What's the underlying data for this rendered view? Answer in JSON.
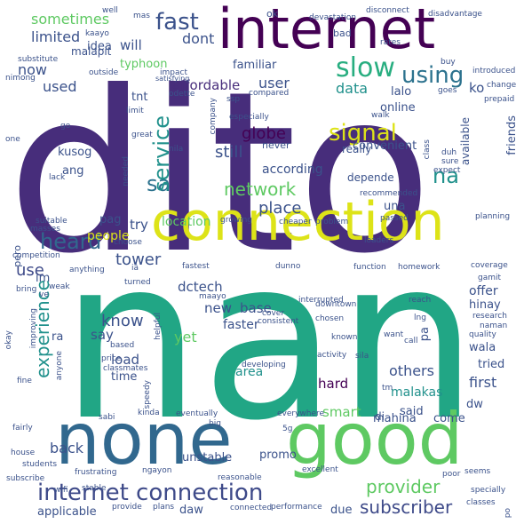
{
  "palette": {
    "deep_purple": "#440154",
    "purple": "#472d7b",
    "indigo": "#3b528b",
    "blue": "#2c728e",
    "teal": "#21918c",
    "green": "#28ae80",
    "light_green": "#5ec962",
    "lime": "#addc30",
    "yellow": "#dde318"
  },
  "words": [
    {
      "text": "dito",
      "weight": 1.0,
      "color": "#472d7b"
    },
    {
      "text": "nan",
      "weight": 0.95,
      "color": "#21a685"
    },
    {
      "text": "none",
      "weight": 0.55,
      "color": "#31688e"
    },
    {
      "text": "good",
      "weight": 0.55,
      "color": "#5ec962"
    },
    {
      "text": "connection",
      "weight": 0.45,
      "color": "#dde318"
    },
    {
      "text": "internet",
      "weight": 0.4,
      "color": "#440154"
    },
    {
      "text": "internet connection",
      "weight": 0.2,
      "color": "#3e4a89"
    },
    {
      "text": "slow",
      "weight": 0.18,
      "color": "#28ae80"
    },
    {
      "text": "fast",
      "weight": 0.16,
      "color": "#3b528b"
    },
    {
      "text": "using",
      "weight": 0.16,
      "color": "#2c728e"
    },
    {
      "text": "signal",
      "weight": 0.16,
      "color": "#dde318"
    },
    {
      "text": "heard",
      "weight": 0.16,
      "color": "#31688e"
    },
    {
      "text": "sa",
      "weight": 0.15,
      "color": "#2c728e"
    },
    {
      "text": "na",
      "weight": 0.15,
      "color": "#21918c"
    },
    {
      "text": "service",
      "weight": 0.15,
      "color": "#21918c"
    },
    {
      "text": "network",
      "weight": 0.14,
      "color": "#5ec962"
    },
    {
      "text": "experience",
      "weight": 0.14,
      "color": "#21918c"
    },
    {
      "text": "provider",
      "weight": 0.14,
      "color": "#5ec962"
    },
    {
      "text": "subscriber",
      "weight": 0.13,
      "color": "#3e4a89"
    },
    {
      "text": "sometimes",
      "weight": 0.13,
      "color": "#5ec962"
    },
    {
      "text": "globe",
      "weight": 0.13,
      "color": "#440154"
    },
    {
      "text": "still",
      "weight": 0.13,
      "color": "#3b528b"
    },
    {
      "text": "place",
      "weight": 0.12,
      "color": "#3b528b"
    },
    {
      "text": "know",
      "weight": 0.12,
      "color": "#3b528b"
    },
    {
      "text": "tower",
      "weight": 0.12,
      "color": "#3b528b"
    },
    {
      "text": "use",
      "weight": 0.12,
      "color": "#3e4a89"
    },
    {
      "text": "dont",
      "weight": 0.11,
      "color": "#3b528b"
    },
    {
      "text": "user",
      "weight": 0.11,
      "color": "#3b528b"
    },
    {
      "text": "data",
      "weight": 0.11,
      "color": "#21918c"
    },
    {
      "text": "limited",
      "weight": 0.1,
      "color": "#3b528b"
    },
    {
      "text": "now",
      "weight": 0.1,
      "color": "#3b528b"
    },
    {
      "text": "used",
      "weight": 0.1,
      "color": "#3b528b"
    },
    {
      "text": "affordable",
      "weight": 0.1,
      "color": "#472d7b"
    },
    {
      "text": "smart",
      "weight": 0.1,
      "color": "#5ec962"
    },
    {
      "text": "others",
      "weight": 0.1,
      "color": "#3b528b"
    },
    {
      "text": "first",
      "weight": 0.1,
      "color": "#3b528b"
    },
    {
      "text": "yet",
      "weight": 0.1,
      "color": "#5ec962"
    },
    {
      "text": "back",
      "weight": 0.1,
      "color": "#3b528b"
    },
    {
      "text": "say",
      "weight": 0.09,
      "color": "#3b528b"
    },
    {
      "text": "load",
      "weight": 0.09,
      "color": "#3b528b"
    },
    {
      "text": "new",
      "weight": 0.09,
      "color": "#3b528b"
    },
    {
      "text": "hard",
      "weight": 0.09,
      "color": "#440154"
    },
    {
      "text": "ko",
      "weight": 0.09,
      "color": "#3b528b"
    },
    {
      "text": "will",
      "weight": 0.09,
      "color": "#3b528b"
    },
    {
      "text": "try",
      "weight": 0.09,
      "color": "#3b528b"
    },
    {
      "text": "people",
      "weight": 0.08,
      "color": "#dde318"
    },
    {
      "text": "location",
      "weight": 0.08,
      "color": "#5ec962"
    },
    {
      "text": "dctech",
      "weight": 0.08,
      "color": "#3b528b"
    },
    {
      "text": "base",
      "weight": 0.08,
      "color": "#3b528b"
    },
    {
      "text": "area",
      "weight": 0.08,
      "color": "#21918c"
    },
    {
      "text": "offer",
      "weight": 0.08,
      "color": "#3b528b"
    },
    {
      "text": "faster",
      "weight": 0.08,
      "color": "#3b528b"
    },
    {
      "text": "according",
      "weight": 0.08,
      "color": "#3b528b"
    },
    {
      "text": "online",
      "weight": 0.08,
      "color": "#3b528b"
    },
    {
      "text": "malakas",
      "weight": 0.08,
      "color": "#21918c"
    },
    {
      "text": "applicable",
      "weight": 0.08,
      "color": "#3b528b"
    },
    {
      "text": "friends",
      "weight": 0.07,
      "color": "#3b528b"
    },
    {
      "text": "unstable",
      "weight": 0.07,
      "color": "#3b528b"
    },
    {
      "text": "typhoon",
      "weight": 0.07,
      "color": "#5ec962"
    },
    {
      "text": "familiar",
      "weight": 0.07,
      "color": "#3b528b"
    },
    {
      "text": "convenient",
      "weight": 0.07,
      "color": "#3b528b"
    },
    {
      "text": "really",
      "weight": 0.07,
      "color": "#3b528b"
    },
    {
      "text": "kusog",
      "weight": 0.07,
      "color": "#3b528b"
    },
    {
      "text": "ang",
      "weight": 0.07,
      "color": "#3b528b"
    },
    {
      "text": "una",
      "weight": 0.07,
      "color": "#3b528b"
    },
    {
      "text": "pag",
      "weight": 0.07,
      "color": "#3b528b"
    },
    {
      "text": "im",
      "weight": 0.07,
      "color": "#3b528b"
    },
    {
      "text": "ra",
      "weight": 0.07,
      "color": "#3b528b"
    },
    {
      "text": "pa",
      "weight": 0.07,
      "color": "#3b528b"
    },
    {
      "text": "wala",
      "weight": 0.07,
      "color": "#3b528b"
    },
    {
      "text": "hinay",
      "weight": 0.07,
      "color": "#3b528b"
    },
    {
      "text": "tried",
      "weight": 0.07,
      "color": "#3b528b"
    },
    {
      "text": "said",
      "weight": 0.07,
      "color": "#3b528b"
    },
    {
      "text": "mahina",
      "weight": 0.07,
      "color": "#3b528b"
    },
    {
      "text": "come",
      "weight": 0.07,
      "color": "#3b528b"
    },
    {
      "text": "dw",
      "weight": 0.07,
      "color": "#3b528b"
    },
    {
      "text": "di",
      "weight": 0.07,
      "color": "#3b528b"
    },
    {
      "text": "due",
      "weight": 0.07,
      "color": "#3b528b"
    },
    {
      "text": "daw",
      "weight": 0.07,
      "color": "#3b528b"
    },
    {
      "text": "promo",
      "weight": 0.07,
      "color": "#3b528b"
    },
    {
      "text": "time",
      "weight": 0.07,
      "color": "#3b528b"
    },
    {
      "text": "lalo",
      "weight": 0.07,
      "color": "#3b528b"
    },
    {
      "text": "tnt",
      "weight": 0.07,
      "color": "#3b528b"
    },
    {
      "text": "idea",
      "weight": 0.07,
      "color": "#3b528b"
    },
    {
      "text": "malapit",
      "weight": 0.06,
      "color": "#3b528b"
    },
    {
      "text": "available",
      "weight": 0.06,
      "color": "#3b528b"
    },
    {
      "text": "depende",
      "weight": 0.06,
      "color": "#3b528b"
    },
    {
      "text": "ok",
      "weight": 0.06,
      "color": "#3b528b"
    },
    {
      "text": "bad",
      "weight": 0.06,
      "color": "#3b528b"
    },
    {
      "text": "pero",
      "weight": 0.06,
      "color": "#3b528b"
    },
    {
      "text": "well",
      "weight": 0.05,
      "color": "#3b528b"
    },
    {
      "text": "mas",
      "weight": 0.05,
      "color": "#3b528b"
    },
    {
      "text": "devastation",
      "weight": 0.05,
      "color": "#3b528b"
    },
    {
      "text": "disconnect",
      "weight": 0.05,
      "color": "#3b528b"
    },
    {
      "text": "disadvantage",
      "weight": 0.05,
      "color": "#3b528b"
    },
    {
      "text": "kaayo",
      "weight": 0.05,
      "color": "#3b528b"
    },
    {
      "text": "impact",
      "weight": 0.05,
      "color": "#3b528b"
    },
    {
      "text": "satisfying",
      "weight": 0.05,
      "color": "#3b528b"
    },
    {
      "text": "outside",
      "weight": 0.05,
      "color": "#3b528b"
    },
    {
      "text": "substitute",
      "weight": 0.05,
      "color": "#3b528b"
    },
    {
      "text": "rates",
      "weight": 0.05,
      "color": "#3b528b"
    },
    {
      "text": "buy",
      "weight": 0.05,
      "color": "#3b528b"
    },
    {
      "text": "introduced",
      "weight": 0.05,
      "color": "#3b528b"
    },
    {
      "text": "change",
      "weight": 0.05,
      "color": "#3b528b"
    },
    {
      "text": "goes",
      "weight": 0.05,
      "color": "#3b528b"
    },
    {
      "text": "prepaid",
      "weight": 0.05,
      "color": "#3b528b"
    },
    {
      "text": "nimong",
      "weight": 0.05,
      "color": "#3b528b"
    },
    {
      "text": "odette",
      "weight": 0.05,
      "color": "#3b528b"
    },
    {
      "text": "compared",
      "weight": 0.05,
      "color": "#3b528b"
    },
    {
      "text": "ssp",
      "weight": 0.05,
      "color": "#3b528b"
    },
    {
      "text": "especially",
      "weight": 0.05,
      "color": "#3b528b"
    },
    {
      "text": "walk",
      "weight": 0.05,
      "color": "#3b528b"
    },
    {
      "text": "limit",
      "weight": 0.05,
      "color": "#3b528b"
    },
    {
      "text": "company",
      "weight": 0.05,
      "color": "#3b528b"
    },
    {
      "text": "great",
      "weight": 0.05,
      "color": "#3b528b"
    },
    {
      "text": "nila",
      "weight": 0.05,
      "color": "#3b528b"
    },
    {
      "text": "never",
      "weight": 0.05,
      "color": "#3b528b"
    },
    {
      "text": "duh",
      "weight": 0.05,
      "color": "#3b528b"
    },
    {
      "text": "class",
      "weight": 0.05,
      "color": "#3b528b"
    },
    {
      "text": "expect",
      "weight": 0.05,
      "color": "#3b528b"
    },
    {
      "text": "sure",
      "weight": 0.05,
      "color": "#3b528b"
    },
    {
      "text": "one",
      "weight": 0.05,
      "color": "#3b528b"
    },
    {
      "text": "go",
      "weight": 0.05,
      "color": "#3b528b"
    },
    {
      "text": "needed",
      "weight": 0.05,
      "color": "#3b528b"
    },
    {
      "text": "lack",
      "weight": 0.05,
      "color": "#3b528b"
    },
    {
      "text": "recommended",
      "weight": 0.05,
      "color": "#3b528b"
    },
    {
      "text": "masses",
      "weight": 0.05,
      "color": "#3b528b"
    },
    {
      "text": "suitable",
      "weight": 0.05,
      "color": "#3b528b"
    },
    {
      "text": "choose",
      "weight": 0.05,
      "color": "#3b528b"
    },
    {
      "text": "growing",
      "weight": 0.05,
      "color": "#3b528b"
    },
    {
      "text": "cheaper",
      "weight": 0.05,
      "color": "#3b528b"
    },
    {
      "text": "problem",
      "weight": 0.05,
      "color": "#3b528b"
    },
    {
      "text": "passed",
      "weight": 0.05,
      "color": "#3b528b"
    },
    {
      "text": "planning",
      "weight": 0.05,
      "color": "#3b528b"
    },
    {
      "text": "competition",
      "weight": 0.05,
      "color": "#3b528b"
    },
    {
      "text": "loaders",
      "weight": 0.05,
      "color": "#3b528b"
    },
    {
      "text": "anything",
      "weight": 0.05,
      "color": "#3b528b"
    },
    {
      "text": "iâ",
      "weight": 0.05,
      "color": "#3b528b"
    },
    {
      "text": "fastest",
      "weight": 0.05,
      "color": "#3b528b"
    },
    {
      "text": "dunno",
      "weight": 0.05,
      "color": "#3b528b"
    },
    {
      "text": "function",
      "weight": 0.05,
      "color": "#3b528b"
    },
    {
      "text": "homework",
      "weight": 0.05,
      "color": "#3b528b"
    },
    {
      "text": "coverage",
      "weight": 0.05,
      "color": "#3b528b"
    },
    {
      "text": "bring",
      "weight": 0.05,
      "color": "#3b528b"
    },
    {
      "text": "ve",
      "weight": 0.05,
      "color": "#3b528b"
    },
    {
      "text": "weak",
      "weight": 0.05,
      "color": "#3b528b"
    },
    {
      "text": "maayo",
      "weight": 0.05,
      "color": "#3b528b"
    },
    {
      "text": "interrupted",
      "weight": 0.05,
      "color": "#3b528b"
    },
    {
      "text": "gamit",
      "weight": 0.05,
      "color": "#3b528b"
    },
    {
      "text": "turned",
      "weight": 0.05,
      "color": "#3b528b"
    },
    {
      "text": "downtown",
      "weight": 0.05,
      "color": "#3b528b"
    },
    {
      "text": "reach",
      "weight": 0.05,
      "color": "#3b528b"
    },
    {
      "text": "improving",
      "weight": 0.05,
      "color": "#3b528b"
    },
    {
      "text": "helpful",
      "weight": 0.05,
      "color": "#3b528b"
    },
    {
      "text": "cover",
      "weight": 0.05,
      "color": "#3b528b"
    },
    {
      "text": "consistent",
      "weight": 0.05,
      "color": "#3b528b"
    },
    {
      "text": "chosen",
      "weight": 0.05,
      "color": "#3b528b"
    },
    {
      "text": "lng",
      "weight": 0.05,
      "color": "#3b528b"
    },
    {
      "text": "research",
      "weight": 0.05,
      "color": "#3b528b"
    },
    {
      "text": "naman",
      "weight": 0.05,
      "color": "#3b528b"
    },
    {
      "text": "quality",
      "weight": 0.05,
      "color": "#3b528b"
    },
    {
      "text": "okay",
      "weight": 0.05,
      "color": "#3b528b"
    },
    {
      "text": "based",
      "weight": 0.05,
      "color": "#3b528b"
    },
    {
      "text": "known",
      "weight": 0.05,
      "color": "#3b528b"
    },
    {
      "text": "want",
      "weight": 0.05,
      "color": "#3b528b"
    },
    {
      "text": "call",
      "weight": 0.05,
      "color": "#3b528b"
    },
    {
      "text": "price",
      "weight": 0.05,
      "color": "#3b528b"
    },
    {
      "text": "activity",
      "weight": 0.05,
      "color": "#3b528b"
    },
    {
      "text": "sila",
      "weight": 0.05,
      "color": "#3b528b"
    },
    {
      "text": "anyone",
      "weight": 0.05,
      "color": "#3b528b"
    },
    {
      "text": "classmates",
      "weight": 0.05,
      "color": "#3b528b"
    },
    {
      "text": "developing",
      "weight": 0.05,
      "color": "#3b528b"
    },
    {
      "text": "tm",
      "weight": 0.05,
      "color": "#3b528b"
    },
    {
      "text": "speedy",
      "weight": 0.05,
      "color": "#3b528b"
    },
    {
      "text": "fine",
      "weight": 0.05,
      "color": "#3b528b"
    },
    {
      "text": "sabi",
      "weight": 0.05,
      "color": "#3b528b"
    },
    {
      "text": "kinda",
      "weight": 0.05,
      "color": "#3b528b"
    },
    {
      "text": "eventually",
      "weight": 0.05,
      "color": "#3b528b"
    },
    {
      "text": "everywhere",
      "weight": 0.05,
      "color": "#3b528b"
    },
    {
      "text": "fairly",
      "weight": 0.05,
      "color": "#3b528b"
    },
    {
      "text": "big",
      "weight": 0.05,
      "color": "#3b528b"
    },
    {
      "text": "5g",
      "weight": 0.05,
      "color": "#3b528b"
    },
    {
      "text": "house",
      "weight": 0.05,
      "color": "#3b528b"
    },
    {
      "text": "students",
      "weight": 0.05,
      "color": "#3b528b"
    },
    {
      "text": "frustrating",
      "weight": 0.05,
      "color": "#3b528b"
    },
    {
      "text": "ngayon",
      "weight": 0.05,
      "color": "#3b528b"
    },
    {
      "text": "reasonable",
      "weight": 0.05,
      "color": "#3b528b"
    },
    {
      "text": "excellent",
      "weight": 0.05,
      "color": "#3b528b"
    },
    {
      "text": "poor",
      "weight": 0.05,
      "color": "#3b528b"
    },
    {
      "text": "seems",
      "weight": 0.05,
      "color": "#3b528b"
    },
    {
      "text": "specially",
      "weight": 0.05,
      "color": "#3b528b"
    },
    {
      "text": "subscribe",
      "weight": 0.05,
      "color": "#3b528b"
    },
    {
      "text": "wifi",
      "weight": 0.05,
      "color": "#3b528b"
    },
    {
      "text": "stable",
      "weight": 0.05,
      "color": "#3b528b"
    },
    {
      "text": "provide",
      "weight": 0.05,
      "color": "#3b528b"
    },
    {
      "text": "plans",
      "weight": 0.05,
      "color": "#3b528b"
    },
    {
      "text": "connected",
      "weight": 0.05,
      "color": "#3b528b"
    },
    {
      "text": "performance",
      "weight": 0.05,
      "color": "#3b528b"
    },
    {
      "text": "classes",
      "weight": 0.05,
      "color": "#3b528b"
    },
    {
      "text": "po",
      "weight": 0.05,
      "color": "#3b528b"
    }
  ]
}
